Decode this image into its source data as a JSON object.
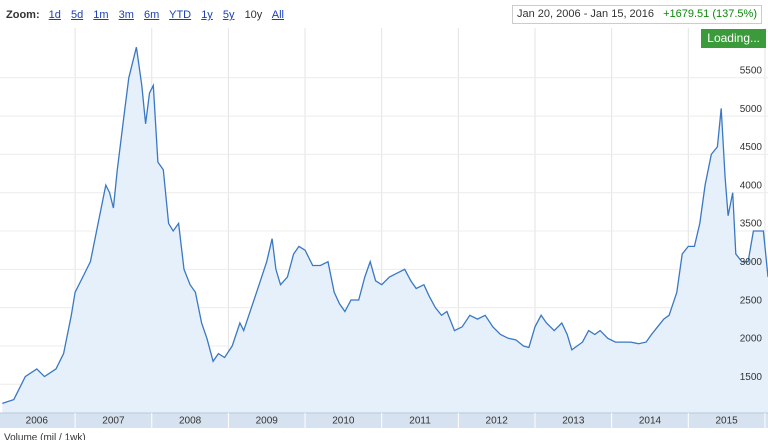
{
  "toolbar": {
    "zoom_label": "Zoom:",
    "zoom_options": [
      "1d",
      "5d",
      "1m",
      "3m",
      "6m",
      "YTD",
      "1y",
      "5y",
      "10y",
      "All"
    ],
    "range_start": "Jan 20, 2006",
    "range_separator": "-",
    "range_end": "Jan 15, 2016",
    "change": "+1679.51 (137.5%)",
    "status": "Loading...",
    "volume_label": "Volume (mil / 1wk)"
  },
  "chart_data": {
    "type": "area",
    "color": "#3a78c3",
    "fill": "#e6f0fa",
    "grid": true,
    "xlim": [
      2006.02,
      2016.04
    ],
    "ylim": [
      1125,
      6150
    ],
    "yticks": [
      1500,
      2000,
      2500,
      3000,
      3500,
      4000,
      4500,
      5000,
      5500
    ],
    "xticks": [
      {
        "value": 2006.5,
        "label": "2006"
      },
      {
        "value": 2007.5,
        "label": "2007"
      },
      {
        "value": 2008.5,
        "label": "2008"
      },
      {
        "value": 2009.5,
        "label": "2009"
      },
      {
        "value": 2010.5,
        "label": "2010"
      },
      {
        "value": 2011.5,
        "label": "2011"
      },
      {
        "value": 2012.5,
        "label": "2012"
      },
      {
        "value": 2013.5,
        "label": "2013"
      },
      {
        "value": 2014.5,
        "label": "2014"
      },
      {
        "value": 2015.5,
        "label": "2015"
      }
    ],
    "xgrid": [
      2007,
      2008,
      2009,
      2010,
      2011,
      2012,
      2013,
      2014,
      2015,
      2016
    ],
    "x": [
      2006.05,
      2006.2,
      2006.35,
      2006.5,
      2006.6,
      2006.75,
      2006.85,
      2006.95,
      2007.0,
      2007.1,
      2007.2,
      2007.3,
      2007.4,
      2007.45,
      2007.5,
      2007.55,
      2007.65,
      2007.7,
      2007.8,
      2007.87,
      2007.92,
      2007.97,
      2008.02,
      2008.08,
      2008.15,
      2008.22,
      2008.28,
      2008.35,
      2008.42,
      2008.5,
      2008.57,
      2008.65,
      2008.72,
      2008.8,
      2008.87,
      2008.95,
      2009.05,
      2009.15,
      2009.2,
      2009.3,
      2009.4,
      2009.5,
      2009.57,
      2009.62,
      2009.68,
      2009.77,
      2009.85,
      2009.92,
      2010.0,
      2010.1,
      2010.2,
      2010.3,
      2010.38,
      2010.45,
      2010.52,
      2010.6,
      2010.7,
      2010.78,
      2010.85,
      2010.92,
      2011.0,
      2011.1,
      2011.2,
      2011.3,
      2011.38,
      2011.45,
      2011.55,
      2011.62,
      2011.7,
      2011.78,
      2011.85,
      2011.95,
      2012.05,
      2012.15,
      2012.25,
      2012.35,
      2012.45,
      2012.55,
      2012.65,
      2012.75,
      2012.85,
      2012.92,
      2013.0,
      2013.08,
      2013.15,
      2013.25,
      2013.35,
      2013.42,
      2013.48,
      2013.55,
      2013.62,
      2013.7,
      2013.78,
      2013.85,
      2013.95,
      2014.05,
      2014.15,
      2014.25,
      2014.35,
      2014.45,
      2014.52,
      2014.6,
      2014.68,
      2014.75,
      2014.85,
      2014.92,
      2015.0,
      2015.08,
      2015.15,
      2015.22,
      2015.3,
      2015.38,
      2015.43,
      2015.48,
      2015.52,
      2015.58,
      2015.62,
      2015.7,
      2015.78,
      2015.85,
      2015.92,
      2015.98,
      2016.04
    ],
    "values": [
      1250,
      1300,
      1600,
      1700,
      1600,
      1700,
      1900,
      2400,
      2700,
      2900,
      3100,
      3600,
      4100,
      4000,
      3800,
      4300,
      5100,
      5500,
      5900,
      5400,
      4900,
      5300,
      5400,
      4400,
      4300,
      3600,
      3500,
      3600,
      3000,
      2800,
      2700,
      2300,
      2100,
      1800,
      1900,
      1850,
      2000,
      2300,
      2200,
      2500,
      2800,
      3100,
      3400,
      3000,
      2800,
      2900,
      3200,
      3300,
      3250,
      3050,
      3050,
      3100,
      2700,
      2550,
      2450,
      2600,
      2600,
      2900,
      3100,
      2850,
      2800,
      2900,
      2950,
      3000,
      2850,
      2750,
      2800,
      2650,
      2500,
      2400,
      2450,
      2200,
      2250,
      2400,
      2350,
      2400,
      2250,
      2150,
      2100,
      2080,
      2000,
      1980,
      2250,
      2400,
      2300,
      2200,
      2300,
      2150,
      1950,
      2000,
      2050,
      2200,
      2150,
      2200,
      2100,
      2050,
      2050,
      2050,
      2030,
      2050,
      2150,
      2250,
      2350,
      2400,
      2700,
      3200,
      3300,
      3300,
      3600,
      4100,
      4500,
      4600,
      5100,
      4200,
      3700,
      4000,
      3200,
      3100,
      3100,
      3500,
      3500,
      3500,
      2900
    ]
  }
}
